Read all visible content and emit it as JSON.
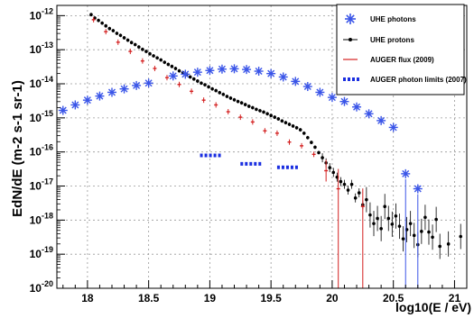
{
  "chart_data": {
    "type": "scatter",
    "title": "",
    "xlabel": "log10(E / eV)",
    "ylabel": "EdN/dE (m-2 s-1 sr-1)",
    "xlim": [
      17.75,
      21.1
    ],
    "ylim_log10": [
      -20,
      -11.7
    ],
    "log_y": true,
    "grid": true,
    "legend_position": "top-right",
    "x_ticks": [
      {
        "v": 18,
        "label": "18"
      },
      {
        "v": 18.5,
        "label": "18.5"
      },
      {
        "v": 19,
        "label": "19"
      },
      {
        "v": 19.5,
        "label": "19.5"
      },
      {
        "v": 20,
        "label": "20"
      },
      {
        "v": 20.5,
        "label": "20.5"
      },
      {
        "v": 21,
        "label": "21"
      }
    ],
    "y_ticks": [
      -12,
      -13,
      -14,
      -15,
      -16,
      -17,
      -18,
      -19,
      -20
    ],
    "series": [
      {
        "name": "UHE photons",
        "color": "#3a55e8",
        "marker": "star",
        "points": [
          [
            17.8,
            -14.78
          ],
          [
            17.9,
            -14.62
          ],
          [
            18.0,
            -14.48
          ],
          [
            18.1,
            -14.36
          ],
          [
            18.2,
            -14.25
          ],
          [
            18.3,
            -14.15
          ],
          [
            18.4,
            -14.05
          ],
          [
            18.5,
            -13.98
          ],
          [
            18.7,
            -13.77
          ],
          [
            18.8,
            -13.72
          ],
          [
            18.9,
            -13.66
          ],
          [
            19.0,
            -13.61
          ],
          [
            19.1,
            -13.57
          ],
          [
            19.2,
            -13.56
          ],
          [
            19.3,
            -13.58
          ],
          [
            19.4,
            -13.63
          ],
          [
            19.5,
            -13.7
          ],
          [
            19.6,
            -13.8
          ],
          [
            19.7,
            -13.93
          ],
          [
            19.8,
            -14.08
          ],
          [
            19.9,
            -14.25
          ],
          [
            20.0,
            -14.4
          ],
          [
            20.1,
            -14.52
          ],
          [
            20.2,
            -14.68
          ],
          [
            20.3,
            -14.88
          ],
          [
            20.4,
            -15.08
          ],
          [
            20.5,
            -15.28
          ],
          [
            20.6,
            -16.64
          ],
          [
            20.7,
            -17.08
          ]
        ]
      },
      {
        "name": "UHE protons",
        "color": "#000000",
        "marker": "dot",
        "points": [
          [
            18.03,
            -11.97
          ],
          [
            18.06,
            -12.07
          ],
          [
            18.09,
            -12.14
          ],
          [
            18.12,
            -12.22
          ],
          [
            18.15,
            -12.3
          ],
          [
            18.18,
            -12.38
          ],
          [
            18.21,
            -12.44
          ],
          [
            18.24,
            -12.52
          ],
          [
            18.27,
            -12.58
          ],
          [
            18.3,
            -12.65
          ],
          [
            18.33,
            -12.72
          ],
          [
            18.36,
            -12.79
          ],
          [
            18.39,
            -12.85
          ],
          [
            18.42,
            -12.92
          ],
          [
            18.45,
            -12.99
          ],
          [
            18.48,
            -13.05
          ],
          [
            18.51,
            -13.12
          ],
          [
            18.54,
            -13.18
          ],
          [
            18.57,
            -13.24
          ],
          [
            18.6,
            -13.3
          ],
          [
            18.63,
            -13.37
          ],
          [
            18.66,
            -13.43
          ],
          [
            18.69,
            -13.49
          ],
          [
            18.72,
            -13.55
          ],
          [
            18.75,
            -13.62
          ],
          [
            18.78,
            -13.67
          ],
          [
            18.81,
            -13.73
          ],
          [
            18.84,
            -13.8
          ],
          [
            18.87,
            -13.86
          ],
          [
            18.9,
            -13.92
          ],
          [
            18.93,
            -13.98
          ],
          [
            18.96,
            -14.03
          ],
          [
            18.99,
            -14.09
          ],
          [
            19.02,
            -14.15
          ],
          [
            19.05,
            -14.2
          ],
          [
            19.08,
            -14.26
          ],
          [
            19.11,
            -14.31
          ],
          [
            19.14,
            -14.37
          ],
          [
            19.17,
            -14.42
          ],
          [
            19.2,
            -14.47
          ],
          [
            19.23,
            -14.52
          ],
          [
            19.26,
            -14.56
          ],
          [
            19.29,
            -14.61
          ],
          [
            19.32,
            -14.66
          ],
          [
            19.35,
            -14.7
          ],
          [
            19.38,
            -14.75
          ],
          [
            19.41,
            -14.79
          ],
          [
            19.44,
            -14.83
          ],
          [
            19.47,
            -14.88
          ],
          [
            19.5,
            -14.93
          ],
          [
            19.53,
            -14.98
          ],
          [
            19.56,
            -15.03
          ],
          [
            19.59,
            -15.09
          ],
          [
            19.62,
            -15.14
          ],
          [
            19.65,
            -15.19
          ],
          [
            19.68,
            -15.24
          ],
          [
            19.71,
            -15.29
          ],
          [
            19.74,
            -15.35
          ],
          [
            19.77,
            -15.45
          ],
          [
            19.8,
            -15.58
          ],
          [
            19.83,
            -15.72
          ],
          [
            19.86,
            -15.86
          ],
          [
            19.89,
            -16.02
          ],
          [
            19.92,
            -16.17
          ],
          [
            19.95,
            -16.32
          ],
          [
            19.98,
            -16.46
          ],
          [
            20.01,
            -16.6
          ],
          [
            20.04,
            -16.74
          ],
          [
            20.07,
            -16.87
          ],
          [
            20.1,
            -16.95
          ],
          [
            20.13,
            -17.12
          ],
          [
            20.16,
            -16.95
          ],
          [
            20.19,
            -17.35
          ],
          [
            20.22,
            -17.2
          ],
          [
            20.25,
            -17.55
          ],
          [
            20.28,
            -17.4
          ],
          [
            20.31,
            -17.85
          ],
          [
            20.34,
            -18.1
          ],
          [
            20.37,
            -17.95
          ],
          [
            20.4,
            -18.25
          ],
          [
            20.43,
            -17.6
          ],
          [
            20.46,
            -17.95
          ],
          [
            20.49,
            -18.12
          ],
          [
            20.52,
            -17.88
          ],
          [
            20.55,
            -18.18
          ],
          [
            20.58,
            -18.55
          ],
          [
            20.61,
            -18.28
          ],
          [
            20.64,
            -18.1
          ],
          [
            20.67,
            -18.45
          ],
          [
            20.7,
            -18.72
          ],
          [
            20.73,
            -18.33
          ],
          [
            20.76,
            -17.92
          ],
          [
            20.79,
            -18.35
          ],
          [
            20.82,
            -18.5
          ],
          [
            20.85,
            -17.98
          ],
          [
            20.88,
            -18.77
          ],
          [
            20.95,
            -18.7
          ],
          [
            21.05,
            -18.48
          ]
        ]
      },
      {
        "name": "AUGER flux (2009)",
        "color": "#d42020",
        "marker": "errorbar",
        "points": [
          [
            18.05,
            -12.12
          ],
          [
            18.15,
            -12.47
          ],
          [
            18.25,
            -12.78
          ],
          [
            18.35,
            -13.05
          ],
          [
            18.45,
            -13.33
          ],
          [
            18.55,
            -13.55
          ],
          [
            18.65,
            -13.82
          ],
          [
            18.75,
            -14.02
          ],
          [
            18.85,
            -14.22
          ],
          [
            18.95,
            -14.48
          ],
          [
            19.05,
            -14.62
          ],
          [
            19.15,
            -14.82
          ],
          [
            19.25,
            -14.98
          ],
          [
            19.35,
            -15.12
          ],
          [
            19.45,
            -15.38
          ],
          [
            19.55,
            -15.45
          ],
          [
            19.65,
            -15.71
          ],
          [
            19.75,
            -15.82
          ],
          [
            19.85,
            -16.07
          ],
          [
            19.95,
            -16.55
          ],
          [
            20.05,
            -17.08
          ],
          [
            20.25,
            -17.6
          ]
        ]
      },
      {
        "name": "AUGER photon limits (2007)",
        "color": "#1a2ee0",
        "marker": "dashed-segment",
        "segments": [
          {
            "x": [
              18.92,
              19.1
            ],
            "y": -16.1
          },
          {
            "x": [
              19.25,
              19.42
            ],
            "y": -16.35
          },
          {
            "x": [
              19.55,
              19.72
            ],
            "y": -16.45
          }
        ]
      }
    ]
  }
}
